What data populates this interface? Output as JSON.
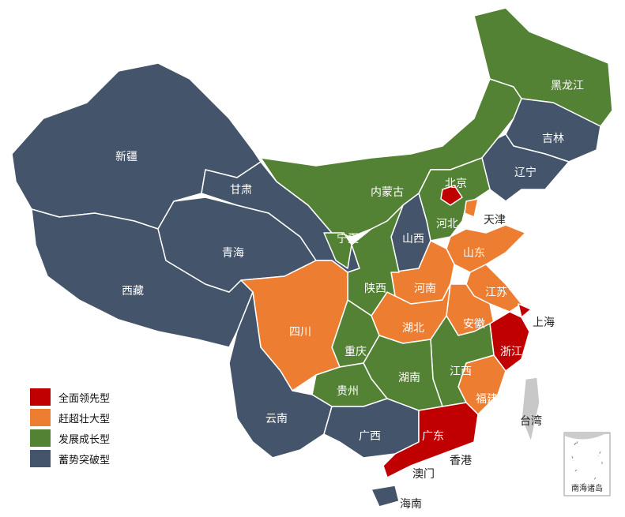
{
  "legend": [
    {
      "label": "全面领先型",
      "color": "#c00000"
    },
    {
      "label": "赶超壮大型",
      "color": "#ed7d31"
    },
    {
      "label": "发展成长型",
      "color": "#548235"
    },
    {
      "label": "蓄势突破型",
      "color": "#44546a"
    }
  ],
  "provinces": [
    {
      "name": "新疆",
      "category": 3
    },
    {
      "name": "西藏",
      "category": 3
    },
    {
      "name": "青海",
      "category": 3
    },
    {
      "name": "甘肃",
      "category": 3
    },
    {
      "name": "内蒙古",
      "category": 2
    },
    {
      "name": "黑龙江",
      "category": 2
    },
    {
      "name": "吉林",
      "category": 3
    },
    {
      "name": "辽宁",
      "category": 3
    },
    {
      "name": "河北",
      "category": 2
    },
    {
      "name": "北京",
      "category": 0
    },
    {
      "name": "天津",
      "category": 1
    },
    {
      "name": "山西",
      "category": 3
    },
    {
      "name": "山东",
      "category": 1
    },
    {
      "name": "河南",
      "category": 1
    },
    {
      "name": "江苏",
      "category": 1
    },
    {
      "name": "上海",
      "category": 0
    },
    {
      "name": "安徽",
      "category": 1
    },
    {
      "name": "浙江",
      "category": 0
    },
    {
      "name": "福建",
      "category": 1
    },
    {
      "name": "江西",
      "category": 2
    },
    {
      "name": "湖北",
      "category": 1
    },
    {
      "name": "陕西",
      "category": 2
    },
    {
      "name": "宁夏",
      "category": 2
    },
    {
      "name": "重庆",
      "category": 2
    },
    {
      "name": "四川",
      "category": 1
    },
    {
      "name": "湖南",
      "category": 2
    },
    {
      "name": "贵州",
      "category": 2
    },
    {
      "name": "云南",
      "category": 3
    },
    {
      "name": "广西",
      "category": 3
    },
    {
      "name": "广东",
      "category": 0
    },
    {
      "name": "海南",
      "category": 3
    },
    {
      "name": "台湾",
      "category": null
    },
    {
      "name": "香港",
      "category": null
    },
    {
      "name": "澳门",
      "category": null
    }
  ],
  "inset_label": "南海诸岛"
}
